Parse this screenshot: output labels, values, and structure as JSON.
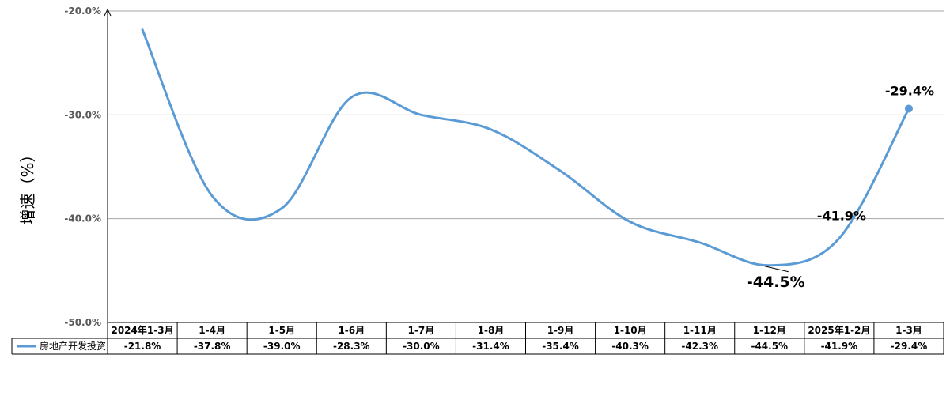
{
  "chart_data": {
    "type": "line",
    "ylabel": "增速（%）",
    "ylim": [
      -50,
      -20
    ],
    "yticks": [
      "-20.0%",
      "-30.0%",
      "-40.0%",
      "-50.0%"
    ],
    "grid": true,
    "categories": [
      "2024年1-3月",
      "1-4月",
      "1-5月",
      "1-6月",
      "1-7月",
      "1-8月",
      "1-9月",
      "1-10月",
      "1-11月",
      "1-12月",
      "2025年1-2月",
      "1-3月"
    ],
    "series": [
      {
        "name": "房地产开发投资",
        "color": "#5B9BD5",
        "values": [
          -21.8,
          -37.8,
          -39.0,
          -28.3,
          -30.0,
          -31.4,
          -35.4,
          -40.3,
          -42.3,
          -44.5,
          -41.9,
          -29.4
        ],
        "value_labels": [
          "-21.8%",
          "-37.8%",
          "-39.0%",
          "-28.3%",
          "-30.0%",
          "-31.4%",
          "-35.4%",
          "-40.3%",
          "-42.3%",
          "-44.5%",
          "-41.9%",
          "-29.4%"
        ]
      }
    ],
    "annotations": [
      {
        "index": 9,
        "text": "-44.5%"
      },
      {
        "index": 10,
        "text": "-41.9%"
      },
      {
        "index": 11,
        "text": "-29.4%"
      }
    ],
    "legend": "data-table"
  }
}
